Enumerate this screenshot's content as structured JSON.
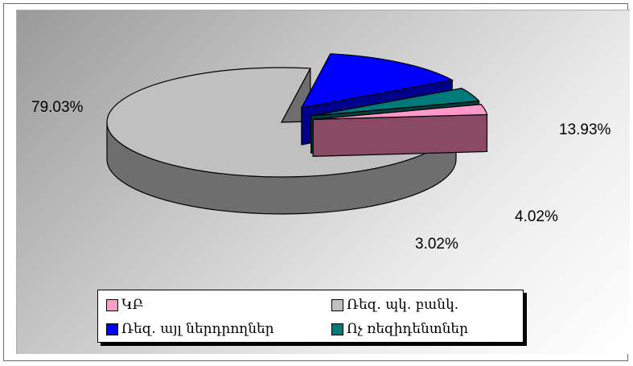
{
  "chart_data": {
    "type": "pie",
    "style": "3d-exploded",
    "title": "",
    "slices": [
      {
        "label": "Ռեզ. պկ. բանկ.",
        "value": 79.03,
        "value_label": "79.03%",
        "color": "#c0c0c0",
        "side_color": "#6e6e6e"
      },
      {
        "label": "Ռեզ. այլ ներդրողներ",
        "value": 13.93,
        "value_label": "13.93%",
        "color": "#0000ff",
        "side_color": "#00008a"
      },
      {
        "label": "Ոչ ռեզիդենտներ",
        "value": 4.02,
        "value_label": "4.02%",
        "color": "#007a7a",
        "side_color": "#004040"
      },
      {
        "label": "ԿԲ",
        "value": 3.02,
        "value_label": "3.02%",
        "color": "#ff99cc",
        "side_color": "#8a4a66"
      }
    ],
    "legend": {
      "placement": "bottom",
      "items": [
        {
          "label": "ԿԲ",
          "color": "#ff99cc"
        },
        {
          "label": "Ռեզ. պկ. բանկ.",
          "color": "#c0c0c0"
        },
        {
          "label": "Ռեզ. այլ ներդրողներ",
          "color": "#0000ff"
        },
        {
          "label": "Ոչ ռեզիդենտներ",
          "color": "#007a7a"
        }
      ]
    }
  }
}
